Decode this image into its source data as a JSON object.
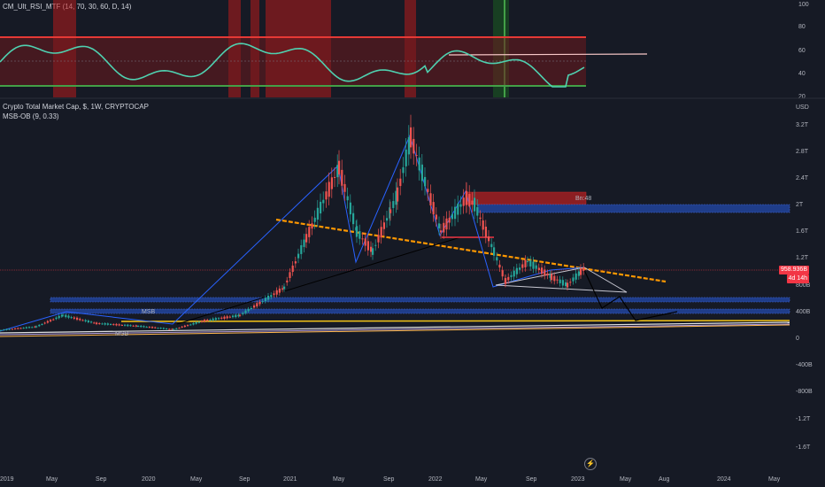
{
  "colors": {
    "background": "#161a25",
    "up": "#26a69a",
    "down": "#ef5350",
    "rsi_line": "#4fd1b0",
    "trend_orange": "#ff9800",
    "ob_red": "#8b1e22",
    "ob_blue": "#1f3d8a",
    "overbought_line": "#e53935",
    "oversold_line": "#43a047"
  },
  "rsi_panel": {
    "legend": "CM_Ult_RSI_MTF (14, 70, 30, 60, D, 14)",
    "ticks": [
      "100",
      "80",
      "60",
      "40",
      "20"
    ]
  },
  "main_panel": {
    "legend_title": "Crypto Total Market Cap, $, 1W, CRYPTOCAP",
    "legend_indicator": "MSB-OB (9, 0.33)",
    "currency_label": "USD",
    "y_ticks": [
      "3.2T",
      "2.8T",
      "2.4T",
      "2T",
      "1.6T",
      "1.2T",
      "800B",
      "400B",
      "0",
      "-400B",
      "-800B",
      "-1.2T",
      "-1.6T"
    ],
    "x_ticks": [
      "2019",
      "May",
      "Sep",
      "2020",
      "May",
      "Sep",
      "2021",
      "May",
      "Sep",
      "2022",
      "May",
      "Sep",
      "2023",
      "May",
      "Aug",
      "2024",
      "May"
    ],
    "price_label": "958.936B",
    "countdown_label": "4d 14h",
    "ob_label": "Bn:48",
    "msb_labels": [
      "MSB",
      "MSB"
    ]
  },
  "chart_data": {
    "type": "line",
    "title": "Crypto Total Market Cap, $, 1W, CRYPTOCAP",
    "ylabel": "USD",
    "unit": "billions USD",
    "x": [
      "2019-01",
      "2019-04",
      "2019-06",
      "2019-09",
      "2019-12",
      "2020-03",
      "2020-06",
      "2020-09",
      "2020-12",
      "2021-02",
      "2021-04",
      "2021-05",
      "2021-07",
      "2021-08",
      "2021-09",
      "2021-11",
      "2022-01",
      "2022-03",
      "2022-04",
      "2022-05",
      "2022-06",
      "2022-08",
      "2022-10",
      "2022-12",
      "2023-01",
      "2023-02"
    ],
    "series": [
      {
        "values": [
          130,
          180,
          350,
          230,
          190,
          140,
          270,
          350,
          760,
          1500,
          2550,
          1600,
          1300,
          1900,
          2150,
          3000,
          1600,
          2100,
          2000,
          1300,
          860,
          1150,
          920,
          800,
          1000,
          1060
        ]
      }
    ],
    "ylim": [
      -1800,
      3400
    ]
  }
}
